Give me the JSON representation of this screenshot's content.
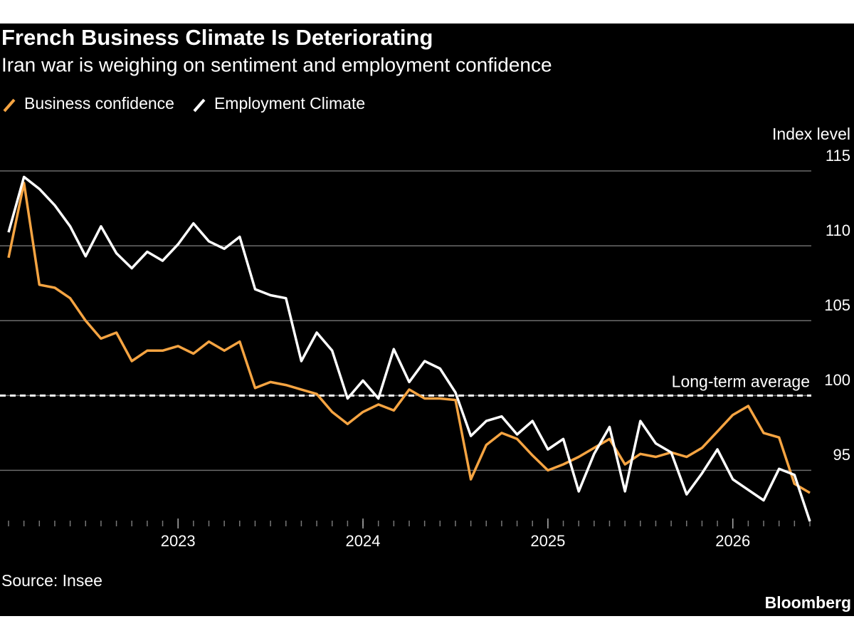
{
  "chart_data": {
    "type": "line",
    "title": "French Business Climate Is Deteriorating",
    "subtitle": "Iran war is weighing on sentiment and employment confidence",
    "y_label": "Index level",
    "source": "Source: Insee",
    "brand": "Bloomberg",
    "x": [
      "2022-02",
      "2022-03",
      "2022-04",
      "2022-05",
      "2022-06",
      "2022-07",
      "2022-08",
      "2022-09",
      "2022-10",
      "2022-11",
      "2022-12",
      "2023-01",
      "2023-02",
      "2023-03",
      "2023-04",
      "2023-05",
      "2023-06",
      "2023-07",
      "2023-08",
      "2023-09",
      "2023-10",
      "2023-11",
      "2023-12",
      "2024-01",
      "2024-02",
      "2024-03",
      "2024-04",
      "2024-05",
      "2024-06",
      "2024-07",
      "2024-08",
      "2024-09",
      "2024-10",
      "2024-11",
      "2024-12",
      "2025-01",
      "2025-02",
      "2025-03",
      "2025-04",
      "2025-05",
      "2025-06",
      "2025-07",
      "2025-08",
      "2025-09",
      "2025-10",
      "2025-11",
      "2025-12",
      "2026-01",
      "2026-02",
      "2026-03",
      "2026-04",
      "2026-05",
      "2026-06"
    ],
    "xlim": [
      "2022-02",
      "2026-06"
    ],
    "xticks": [
      {
        "value": "2023-01",
        "label": "2023"
      },
      {
        "value": "2024-01",
        "label": "2024"
      },
      {
        "value": "2025-01",
        "label": "2025"
      },
      {
        "value": "2026-01",
        "label": "2026"
      }
    ],
    "series": [
      {
        "name": "Business confidence",
        "color": "#f5a442",
        "values": [
          109.2,
          114.2,
          107.4,
          107.2,
          106.5,
          105.0,
          103.8,
          104.2,
          102.3,
          103.0,
          103.0,
          103.3,
          102.8,
          103.6,
          103.0,
          103.6,
          100.5,
          100.9,
          100.7,
          100.4,
          100.1,
          98.9,
          98.1,
          98.9,
          99.4,
          99.0,
          100.4,
          99.8,
          99.8,
          99.7,
          94.4,
          96.7,
          97.5,
          97.1,
          96.0,
          95.0,
          95.4,
          95.9,
          96.5,
          97.1,
          95.4,
          96.1,
          95.9,
          96.2,
          95.9,
          96.5,
          97.6,
          98.7,
          99.3,
          97.5,
          97.2,
          94.1,
          93.5
        ]
      },
      {
        "name": "Employment Climate",
        "color": "#ffffff",
        "values": [
          110.9,
          114.6,
          113.8,
          112.7,
          111.3,
          109.3,
          111.3,
          109.5,
          108.5,
          109.6,
          109.0,
          110.1,
          111.5,
          110.3,
          109.8,
          110.6,
          107.1,
          106.7,
          106.5,
          102.3,
          104.2,
          103.0,
          99.8,
          101.0,
          99.8,
          103.1,
          100.9,
          102.3,
          101.8,
          100.2,
          97.3,
          98.3,
          98.6,
          97.4,
          98.3,
          96.4,
          97.1,
          93.6,
          96.1,
          97.9,
          93.6,
          98.3,
          96.8,
          96.2,
          93.4,
          94.8,
          96.4,
          94.4,
          93.7,
          93.0,
          95.1,
          94.7,
          91.6
        ]
      }
    ],
    "ylim": [
      91.5,
      115
    ],
    "yticks": [
      95,
      100,
      105,
      110,
      115
    ],
    "reference_line": {
      "value": 100,
      "label": "Long-term average"
    },
    "grid": true
  }
}
